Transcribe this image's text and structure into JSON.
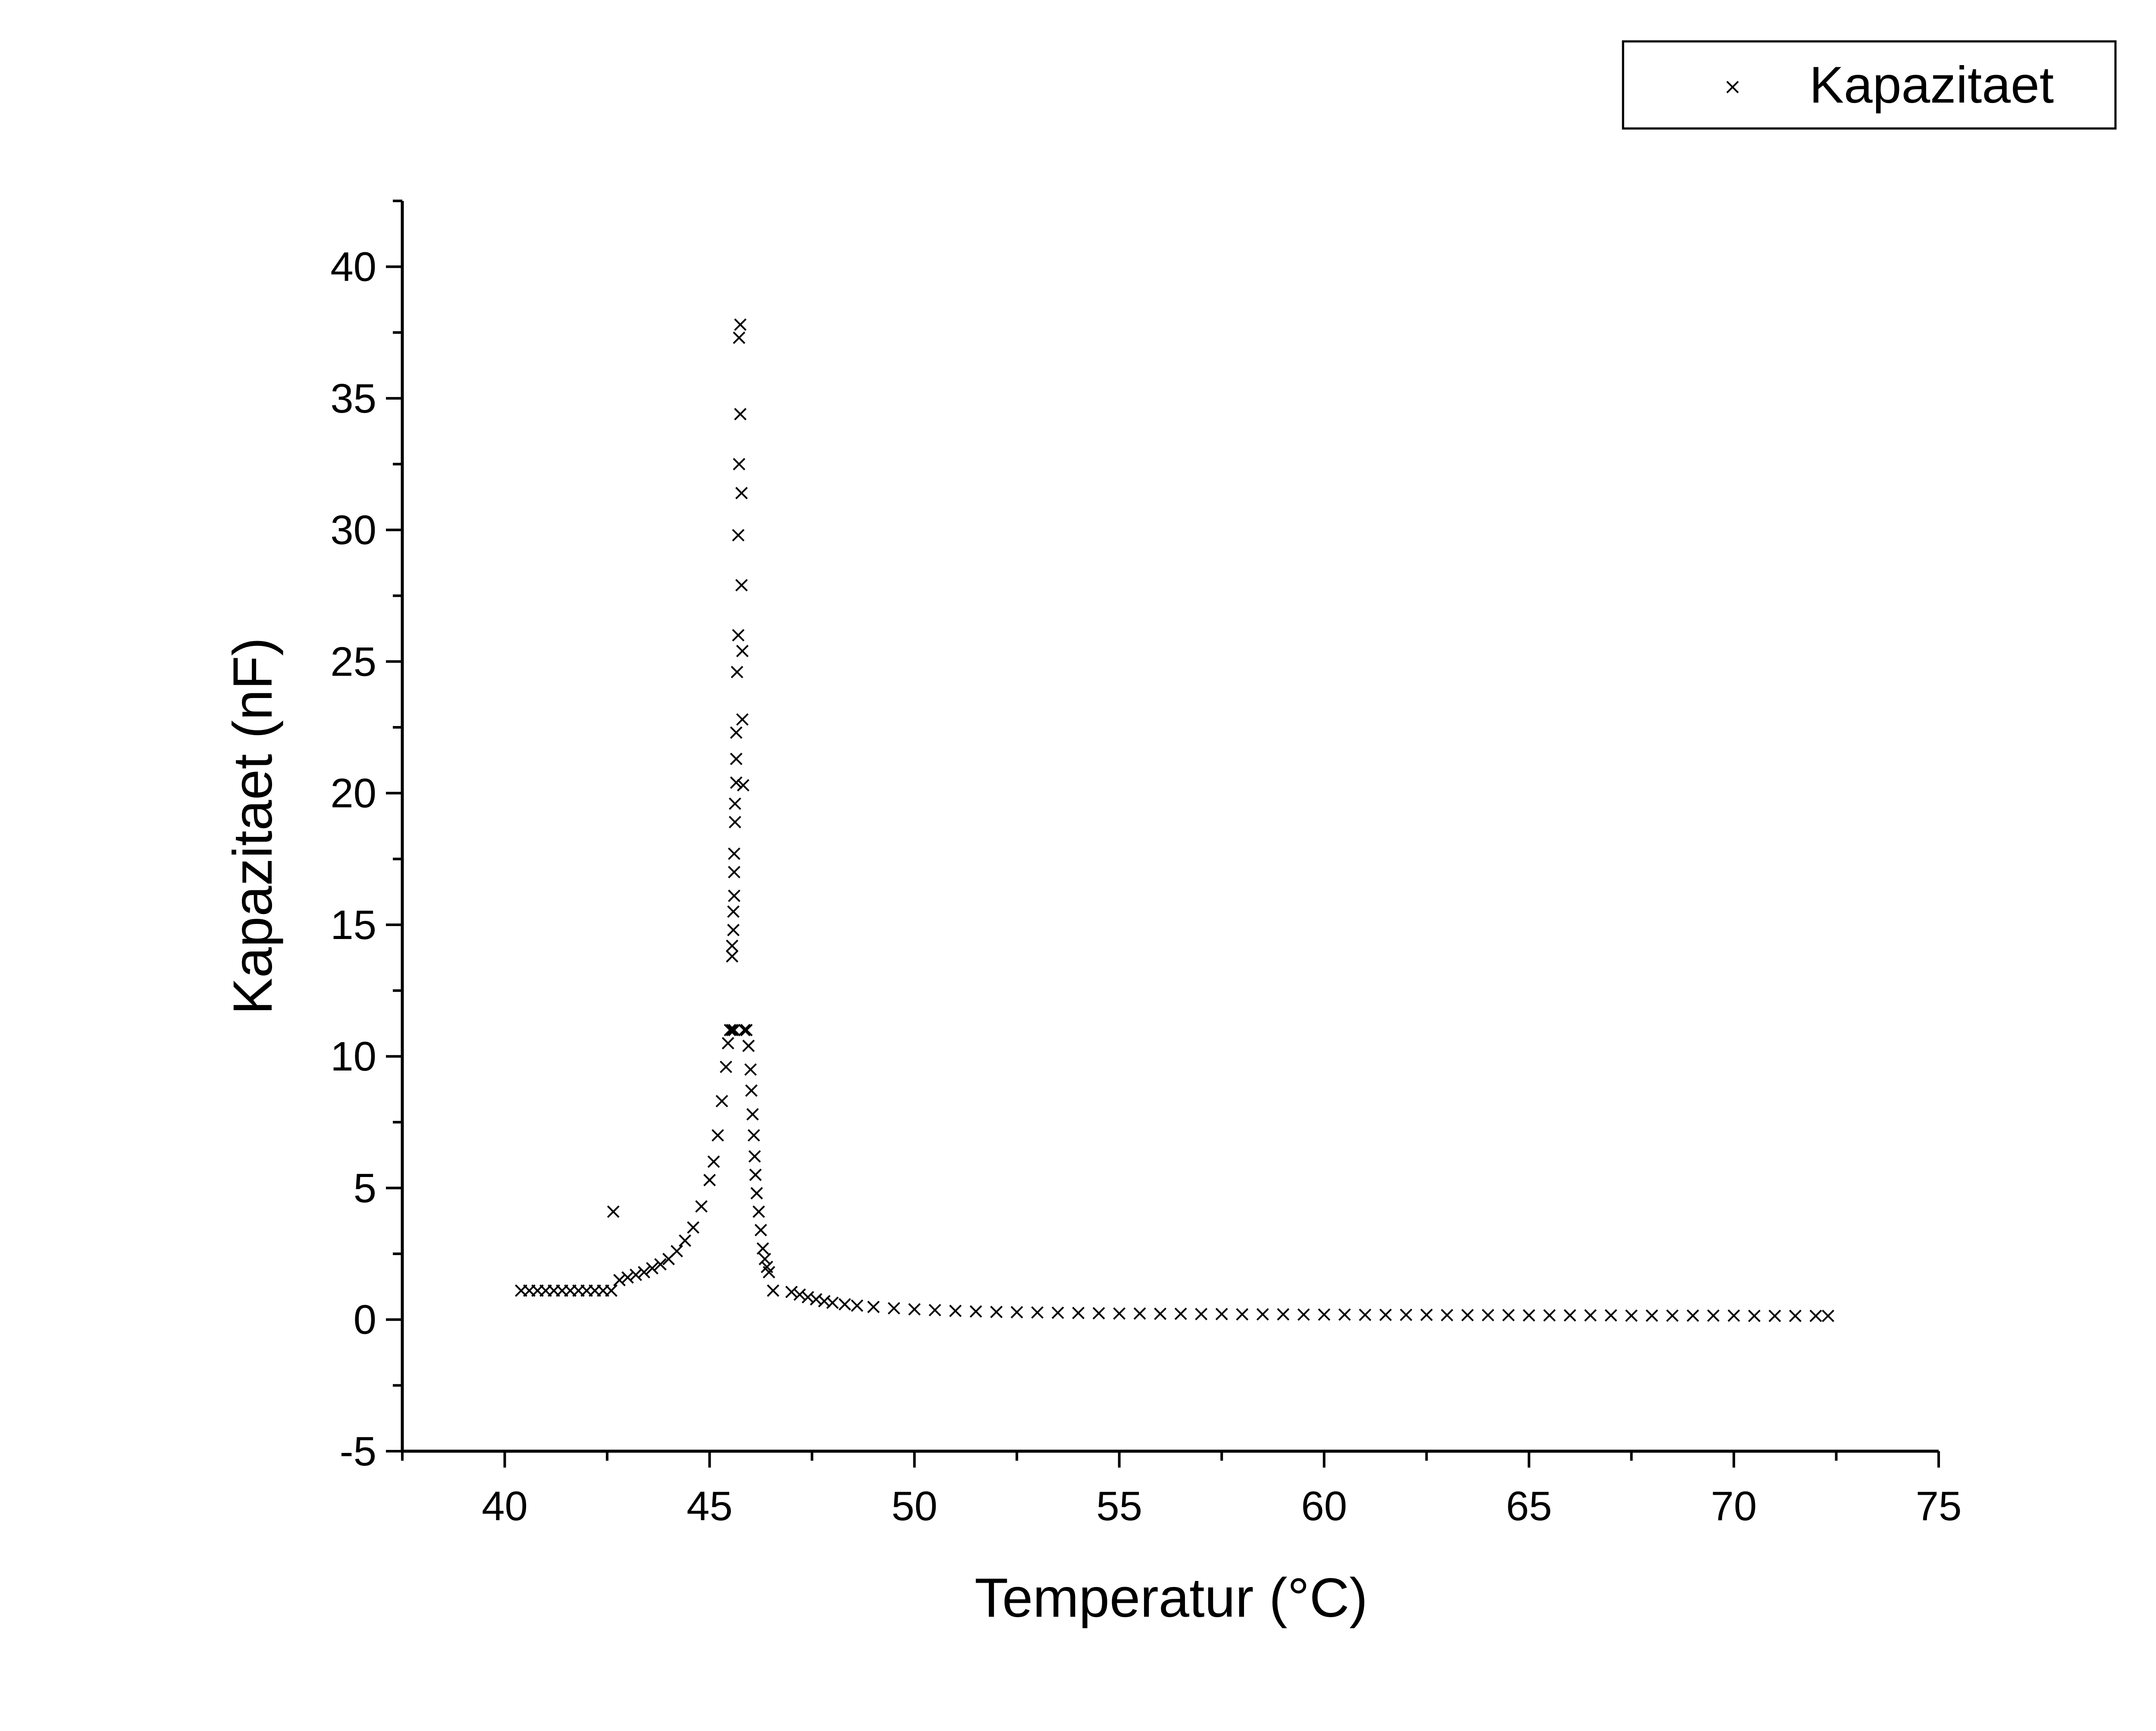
{
  "chart_data": {
    "type": "scatter",
    "title": "",
    "xlabel": "Temperatur (°C)",
    "ylabel": "Kapazitaet (nF)",
    "xlim": [
      37.5,
      75
    ],
    "ylim": [
      -5,
      42.5
    ],
    "x_ticks": [
      40,
      45,
      50,
      55,
      60,
      65,
      70,
      75
    ],
    "x_tick_labels": [
      "40",
      "45",
      "50",
      "55",
      "60",
      "65",
      "70",
      "75"
    ],
    "y_ticks": [
      -5,
      0,
      5,
      10,
      15,
      20,
      25,
      30,
      35,
      40
    ],
    "y_tick_labels": [
      "-5",
      "0",
      "5",
      "10",
      "15",
      "20",
      "25",
      "30",
      "35",
      "40"
    ],
    "grid": false,
    "legend_position": "top-right",
    "marker": "x",
    "color": "#000000",
    "series": [
      {
        "name": "Kapazitaet",
        "points": [
          [
            40.4,
            1.1
          ],
          [
            40.6,
            1.1
          ],
          [
            40.8,
            1.1
          ],
          [
            41.0,
            1.1
          ],
          [
            41.2,
            1.1
          ],
          [
            41.4,
            1.1
          ],
          [
            41.6,
            1.1
          ],
          [
            41.8,
            1.1
          ],
          [
            42.0,
            1.1
          ],
          [
            42.2,
            1.1
          ],
          [
            42.4,
            1.1
          ],
          [
            42.6,
            1.1
          ],
          [
            42.65,
            4.1
          ],
          [
            42.8,
            1.5
          ],
          [
            43.0,
            1.6
          ],
          [
            43.2,
            1.7
          ],
          [
            43.4,
            1.8
          ],
          [
            43.6,
            1.95
          ],
          [
            43.8,
            2.1
          ],
          [
            44.0,
            2.3
          ],
          [
            44.2,
            2.6
          ],
          [
            44.4,
            3.0
          ],
          [
            44.6,
            3.5
          ],
          [
            44.8,
            4.3
          ],
          [
            45.0,
            5.3
          ],
          [
            45.1,
            6.0
          ],
          [
            45.2,
            7.0
          ],
          [
            45.3,
            8.3
          ],
          [
            45.4,
            9.6
          ],
          [
            45.45,
            10.5
          ],
          [
            45.5,
            11.0
          ],
          [
            45.55,
            11.0
          ],
          [
            45.6,
            11.0
          ],
          [
            45.55,
            13.8
          ],
          [
            45.55,
            14.2
          ],
          [
            45.58,
            14.8
          ],
          [
            45.58,
            15.5
          ],
          [
            45.6,
            16.1
          ],
          [
            45.6,
            17.0
          ],
          [
            45.6,
            17.7
          ],
          [
            45.62,
            18.9
          ],
          [
            45.62,
            19.6
          ],
          [
            45.65,
            20.4
          ],
          [
            45.65,
            21.3
          ],
          [
            45.65,
            22.3
          ],
          [
            45.67,
            24.6
          ],
          [
            45.7,
            26.0
          ],
          [
            45.7,
            29.8
          ],
          [
            45.72,
            32.5
          ],
          [
            45.72,
            37.3
          ],
          [
            45.75,
            37.8
          ],
          [
            45.75,
            34.4
          ],
          [
            45.78,
            31.4
          ],
          [
            45.78,
            27.9
          ],
          [
            45.8,
            25.4
          ],
          [
            45.8,
            22.8
          ],
          [
            45.82,
            20.3
          ],
          [
            45.85,
            11.0
          ],
          [
            45.9,
            11.0
          ],
          [
            45.95,
            10.4
          ],
          [
            46.0,
            9.5
          ],
          [
            46.02,
            8.7
          ],
          [
            46.05,
            7.8
          ],
          [
            46.08,
            7.0
          ],
          [
            46.1,
            6.2
          ],
          [
            46.12,
            5.5
          ],
          [
            46.15,
            4.8
          ],
          [
            46.2,
            4.1
          ],
          [
            46.25,
            3.4
          ],
          [
            46.3,
            2.7
          ],
          [
            46.35,
            2.3
          ],
          [
            46.4,
            2.0
          ],
          [
            46.45,
            1.8
          ],
          [
            46.55,
            1.1
          ],
          [
            47.0,
            1.05
          ],
          [
            47.2,
            0.95
          ],
          [
            47.4,
            0.85
          ],
          [
            47.6,
            0.77
          ],
          [
            47.8,
            0.7
          ],
          [
            48.0,
            0.64
          ],
          [
            48.3,
            0.58
          ],
          [
            48.6,
            0.53
          ],
          [
            49.0,
            0.48
          ],
          [
            49.5,
            0.43
          ],
          [
            50.0,
            0.39
          ],
          [
            50.5,
            0.36
          ],
          [
            51.0,
            0.33
          ],
          [
            51.5,
            0.31
          ],
          [
            52.0,
            0.29
          ],
          [
            52.5,
            0.28
          ],
          [
            53.0,
            0.27
          ],
          [
            53.5,
            0.26
          ],
          [
            54.0,
            0.25
          ],
          [
            54.5,
            0.24
          ],
          [
            55.0,
            0.23
          ],
          [
            55.5,
            0.23
          ],
          [
            56.0,
            0.22
          ],
          [
            56.5,
            0.22
          ],
          [
            57.0,
            0.21
          ],
          [
            57.5,
            0.21
          ],
          [
            58.0,
            0.2
          ],
          [
            58.5,
            0.2
          ],
          [
            59.0,
            0.2
          ],
          [
            59.5,
            0.19
          ],
          [
            60.0,
            0.19
          ],
          [
            60.5,
            0.19
          ],
          [
            61.0,
            0.18
          ],
          [
            61.5,
            0.18
          ],
          [
            62.0,
            0.18
          ],
          [
            62.5,
            0.18
          ],
          [
            63.0,
            0.17
          ],
          [
            63.5,
            0.17
          ],
          [
            64.0,
            0.17
          ],
          [
            64.5,
            0.17
          ],
          [
            65.0,
            0.16
          ],
          [
            65.5,
            0.16
          ],
          [
            66.0,
            0.16
          ],
          [
            66.5,
            0.16
          ],
          [
            67.0,
            0.16
          ],
          [
            67.5,
            0.15
          ],
          [
            68.0,
            0.15
          ],
          [
            68.5,
            0.15
          ],
          [
            69.0,
            0.15
          ],
          [
            69.5,
            0.15
          ],
          [
            70.0,
            0.15
          ],
          [
            70.5,
            0.14
          ],
          [
            71.0,
            0.14
          ],
          [
            71.5,
            0.14
          ],
          [
            72.0,
            0.14
          ],
          [
            72.3,
            0.14
          ]
        ]
      }
    ]
  }
}
